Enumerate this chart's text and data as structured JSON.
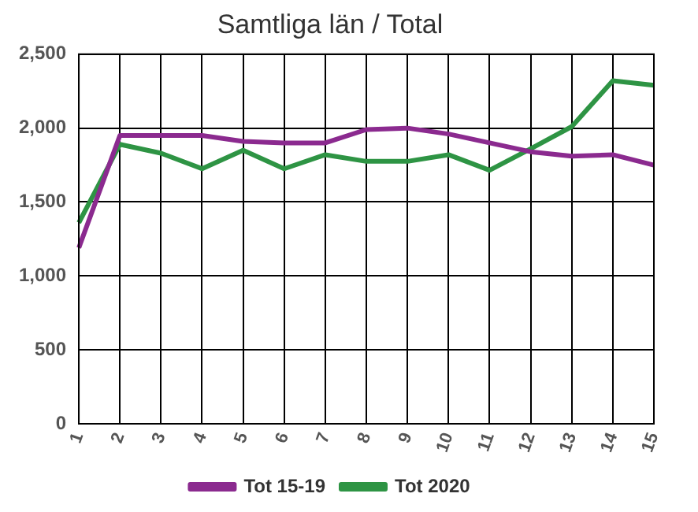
{
  "chart_data": {
    "type": "line",
    "title": "Samtliga län / Total",
    "categories": [
      "1",
      "2",
      "3",
      "4",
      "5",
      "6",
      "7",
      "8",
      "9",
      "10",
      "11",
      "12",
      "13",
      "14",
      "15"
    ],
    "series": [
      {
        "name": "Tot 15-19",
        "color": "#8b2a8f",
        "values": [
          1190,
          1950,
          1950,
          1950,
          1910,
          1900,
          1900,
          1990,
          2000,
          1960,
          1900,
          1840,
          1810,
          1820,
          1750
        ]
      },
      {
        "name": "Tot 2020",
        "color": "#2e9444",
        "values": [
          1360,
          1890,
          1830,
          1725,
          1850,
          1725,
          1820,
          1775,
          1775,
          1820,
          1715,
          1860,
          2010,
          2320,
          2290
        ]
      }
    ],
    "ylim": [
      0,
      2500
    ],
    "yticks": [
      {
        "value": 0,
        "label": "0"
      },
      {
        "value": 500,
        "label": "500"
      },
      {
        "value": 1000,
        "label": "1,000"
      },
      {
        "value": 1500,
        "label": "1,500"
      },
      {
        "value": 2000,
        "label": "2,000"
      },
      {
        "value": 2500,
        "label": "2,500"
      }
    ],
    "grid": true,
    "legend": "bottom",
    "marker": "none",
    "line_style": "solid"
  }
}
